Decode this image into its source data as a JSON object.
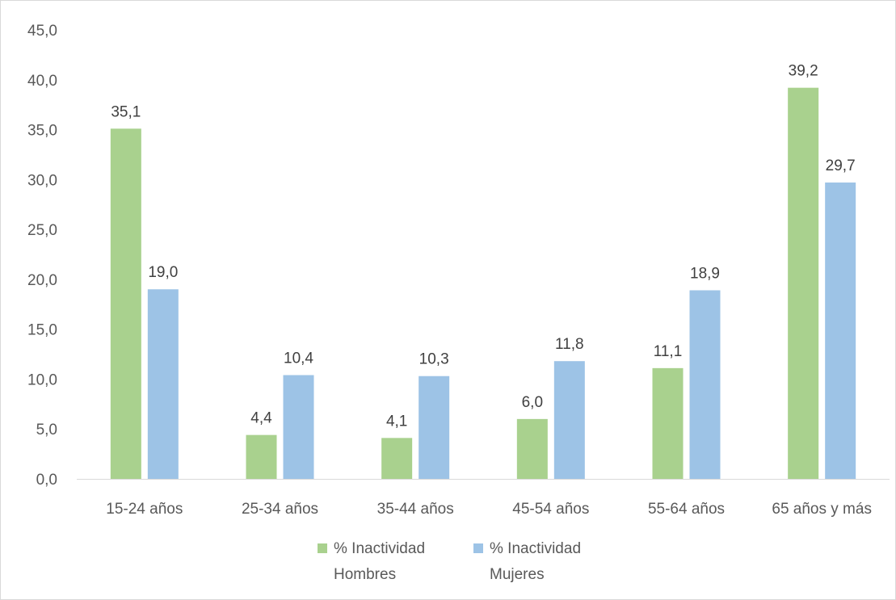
{
  "chart_data": {
    "type": "bar",
    "categories": [
      "15-24 años",
      "25-34 años",
      "35-44 años",
      "45-54 años",
      "55-64 años",
      "65 años y más"
    ],
    "series": [
      {
        "name_lines": [
          "% Inactividad",
          "Hombres"
        ],
        "color": "#a9d18e",
        "values": [
          35.1,
          4.4,
          4.1,
          6.0,
          11.1,
          39.2
        ],
        "value_labels": [
          "35,1",
          "4,4",
          "4,1",
          "6,0",
          "11,1",
          "39,2"
        ]
      },
      {
        "name_lines": [
          "% Inactividad",
          "Mujeres"
        ],
        "color": "#9dc3e6",
        "values": [
          19.0,
          10.4,
          10.3,
          11.8,
          18.9,
          29.7
        ],
        "value_labels": [
          "19,0",
          "10,4",
          "10,3",
          "11,8",
          "18,9",
          "29,7"
        ]
      }
    ],
    "y_ticks": [
      "0,0",
      "5,0",
      "10,0",
      "15,0",
      "20,0",
      "25,0",
      "30,0",
      "35,0",
      "40,0",
      "45,0"
    ],
    "ylim": [
      0,
      45
    ],
    "grid": false,
    "legend_position": "bottom",
    "title": "",
    "xlabel": "",
    "ylabel": ""
  }
}
